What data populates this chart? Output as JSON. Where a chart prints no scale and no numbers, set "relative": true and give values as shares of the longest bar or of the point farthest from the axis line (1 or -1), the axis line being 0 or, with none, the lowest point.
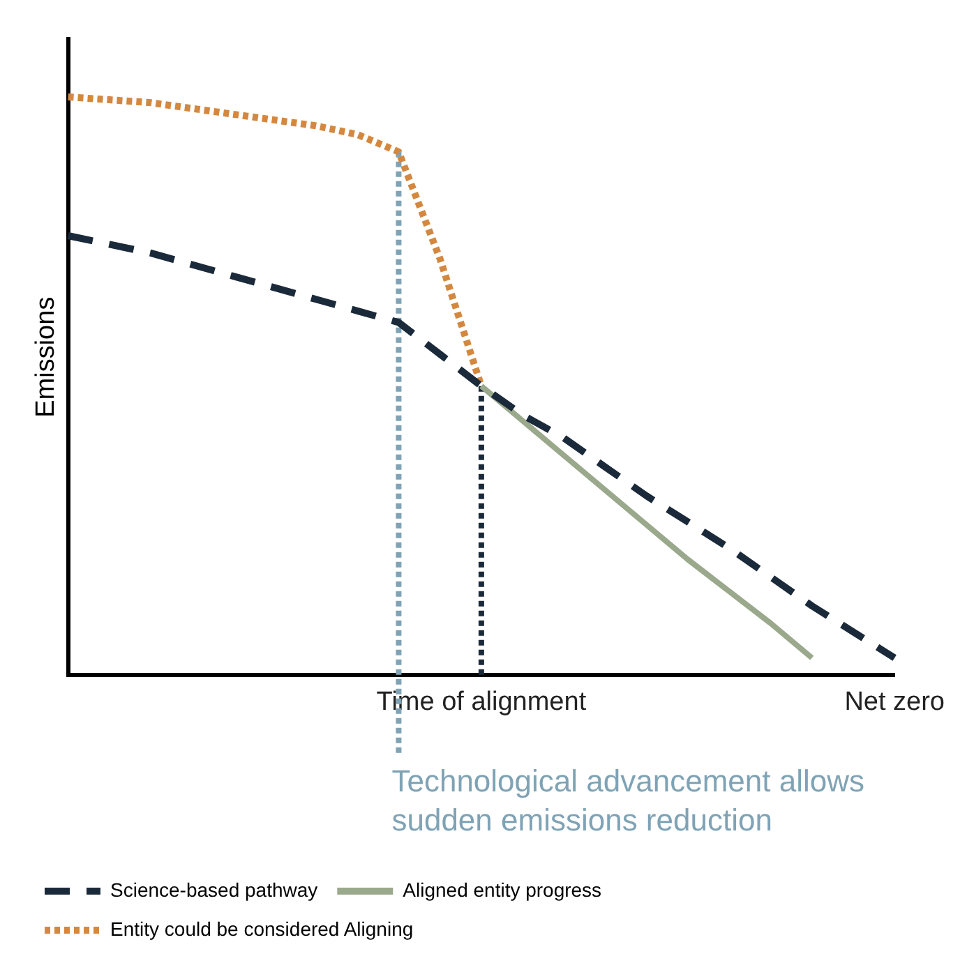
{
  "chart_data": {
    "type": "line",
    "relative": true,
    "ylabel": "Emissions",
    "categories": [
      null,
      null,
      null,
      null,
      null,
      null,
      null,
      null,
      null,
      null,
      "Time of alignment",
      null,
      null,
      null,
      null,
      null,
      null,
      null,
      null,
      null,
      "Net zero"
    ],
    "series": [
      {
        "name": "Science-based pathway",
        "color": "#1b2a3a",
        "line_style": "dashed",
        "values": [
          0.76,
          0.745,
          0.73,
          0.71,
          0.69,
          0.67,
          0.65,
          0.63,
          0.61,
          0.555,
          0.5,
          0.45,
          0.41,
          0.36,
          0.31,
          0.265,
          0.22,
          0.17,
          0.12,
          0.075,
          0.03
        ]
      },
      {
        "name": "Aligned entity progress",
        "color": "#9aa88c",
        "line_style": "solid",
        "values": [
          null,
          null,
          null,
          null,
          null,
          null,
          null,
          null,
          null,
          null,
          0.5,
          0.44,
          0.38,
          0.32,
          0.26,
          0.2,
          0.145,
          0.09,
          0.03,
          null,
          null
        ]
      },
      {
        "name": "Entity could be considered Aligning",
        "color": "#d4883f",
        "line_style": "dotted",
        "values": [
          1.0,
          0.995,
          0.99,
          0.98,
          0.97,
          0.96,
          0.95,
          0.935,
          0.905,
          0.72,
          0.5,
          null,
          null,
          null,
          null,
          null,
          null,
          null,
          null,
          null,
          null
        ]
      }
    ],
    "ref_lines": [
      {
        "axis": "x",
        "value": "Time of alignment",
        "color": "#1b2a3a",
        "line_style": "dotted"
      }
    ],
    "annotations": [
      "Technological advancement allows sudden emissions reduction"
    ],
    "legend": "bottom",
    "marker": "none",
    "grid": false
  }
}
